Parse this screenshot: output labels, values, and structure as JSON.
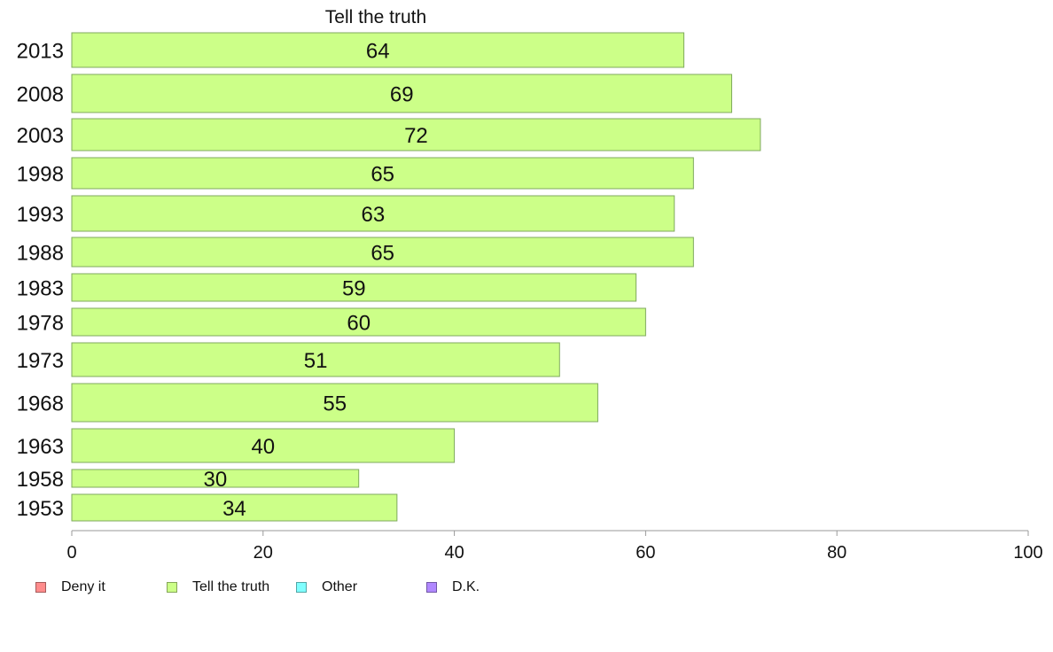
{
  "chart_data": {
    "type": "bar",
    "orientation": "horizontal",
    "title": "Tell the truth",
    "categories": [
      "2013",
      "2008",
      "2003",
      "1998",
      "1993",
      "1988",
      "1983",
      "1978",
      "1973",
      "1968",
      "1963",
      "1958",
      "1953"
    ],
    "series": [
      {
        "name": "Tell the truth",
        "color": "#ccff88",
        "values": [
          64,
          69,
          72,
          65,
          63,
          65,
          59,
          60,
          51,
          55,
          40,
          30,
          34
        ]
      }
    ],
    "x_ticks": [
      0,
      20,
      40,
      60,
      80,
      100
    ],
    "xlim": [
      0,
      100
    ],
    "grid": false,
    "legend_position": "bottom-left",
    "legend": [
      {
        "label": "Deny it",
        "color": "#ff8c8c"
      },
      {
        "label": "Tell the truth",
        "color": "#ccff88"
      },
      {
        "label": "Other",
        "color": "#80ffff"
      },
      {
        "label": "D.K.",
        "color": "#b088ff"
      }
    ]
  }
}
